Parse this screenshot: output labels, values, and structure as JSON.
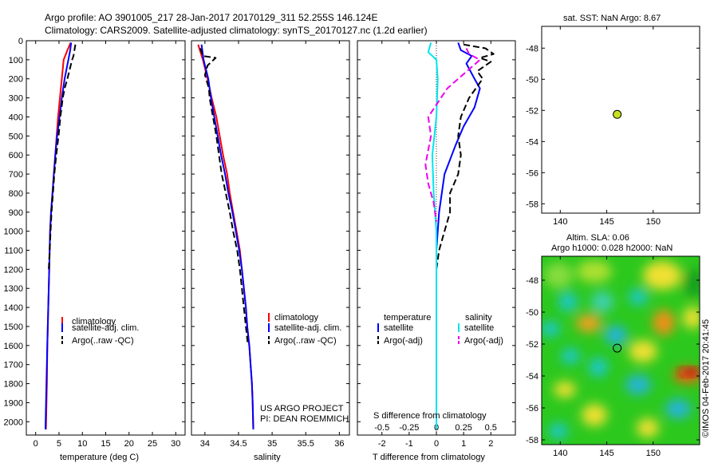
{
  "header": {
    "title_line1": "Argo profile: AO 3901005_217 28-Jan-2017 20170129_311 52.255S 146.124E",
    "title_line2": "Climatology: CARS2009. Satellite-adjusted climatology: synTS_20170127.nc (1.2d earlier)"
  },
  "legend_ts": {
    "clim": "climatology",
    "sat": "satellite-adj. clim.",
    "argo": "Argo(..raw -QC)"
  },
  "legend_diff": {
    "temp_header": "temperature",
    "sal_header": "salinity",
    "sat": "satellite",
    "argo": "Argo(-adj)"
  },
  "credits": {
    "line1": "US ARGO PROJECT",
    "line2": "PI: DEAN ROEMMICH"
  },
  "colors": {
    "clim": "#ff0000",
    "sat": "#0000ff",
    "argo": "#000000",
    "sal_sat": "#00e5ee",
    "sal_argo": "#ee00ee",
    "marker": "#c8e01e"
  },
  "sst_panel": {
    "title": "sat. SST: NaN Argo: 8.67"
  },
  "sla_panel": {
    "title1": "Altim. SLA: 0.06",
    "title2": "Argo h1000: 0.028 h2000: NaN"
  },
  "imos_label": "©IMOS 04-Feb-2017 20:41:45",
  "chart_data": [
    {
      "type": "line",
      "id": "temperature",
      "xlabel": "temperature (deg C)",
      "ylabel": "",
      "xlim": [
        -2,
        32
      ],
      "ylim": [
        2070,
        0
      ],
      "xticks": [
        0,
        5,
        10,
        15,
        20,
        25,
        30
      ],
      "yticks": [
        0,
        100,
        200,
        300,
        400,
        500,
        600,
        700,
        800,
        900,
        1000,
        1100,
        1200,
        1300,
        1400,
        1500,
        1600,
        1700,
        1800,
        1900,
        2000
      ],
      "series": [
        {
          "name": "climatology",
          "color": "#ff0000",
          "dash": "",
          "points": [
            [
              7.5,
              10
            ],
            [
              6.8,
              50
            ],
            [
              6.0,
              100
            ],
            [
              5.6,
              200
            ],
            [
              5.2,
              300
            ],
            [
              4.8,
              400
            ],
            [
              4.5,
              500
            ],
            [
              4.2,
              600
            ],
            [
              3.9,
              700
            ],
            [
              3.6,
              800
            ],
            [
              3.3,
              900
            ],
            [
              3.1,
              1000
            ],
            [
              2.9,
              1200
            ],
            [
              2.7,
              1400
            ],
            [
              2.5,
              1600
            ],
            [
              2.4,
              1800
            ],
            [
              2.2,
              2040
            ]
          ]
        },
        {
          "name": "satellite-adj. clim.",
          "color": "#0000ff",
          "dash": "",
          "points": [
            [
              7.6,
              10
            ],
            [
              7.4,
              50
            ],
            [
              7.0,
              100
            ],
            [
              6.2,
              200
            ],
            [
              5.6,
              300
            ],
            [
              5.1,
              400
            ],
            [
              4.6,
              500
            ],
            [
              4.2,
              600
            ],
            [
              3.9,
              700
            ],
            [
              3.6,
              800
            ],
            [
              3.3,
              900
            ],
            [
              3.1,
              1000
            ],
            [
              2.9,
              1200
            ],
            [
              2.7,
              1400
            ],
            [
              2.5,
              1600
            ],
            [
              2.3,
              1800
            ],
            [
              2.1,
              2040
            ]
          ]
        },
        {
          "name": "Argo(..raw -QC)",
          "color": "#000000",
          "dash": "8,4",
          "points": [
            [
              8.5,
              20
            ],
            [
              8.3,
              50
            ],
            [
              8.1,
              80
            ],
            [
              7.8,
              100
            ],
            [
              7.3,
              150
            ],
            [
              6.8,
              200
            ],
            [
              6.2,
              250
            ],
            [
              5.8,
              300
            ],
            [
              5.3,
              400
            ],
            [
              4.9,
              500
            ],
            [
              4.4,
              600
            ],
            [
              4.0,
              700
            ],
            [
              3.7,
              800
            ],
            [
              3.4,
              900
            ],
            [
              3.2,
              1000
            ],
            [
              3.0,
              1100
            ],
            [
              2.8,
              1200
            ]
          ]
        }
      ]
    },
    {
      "type": "line",
      "id": "salinity",
      "xlabel": "salinity",
      "ylabel": "",
      "xlim": [
        33.8,
        36.15
      ],
      "ylim": [
        2070,
        0
      ],
      "xticks": [
        34,
        34.5,
        35,
        35.5,
        36
      ],
      "series": [
        {
          "name": "climatology",
          "color": "#ff0000",
          "dash": "",
          "points": [
            [
              33.9,
              20
            ],
            [
              33.97,
              100
            ],
            [
              34.04,
              200
            ],
            [
              34.1,
              300
            ],
            [
              34.17,
              400
            ],
            [
              34.22,
              500
            ],
            [
              34.27,
              600
            ],
            [
              34.33,
              700
            ],
            [
              34.37,
              800
            ],
            [
              34.42,
              900
            ],
            [
              34.47,
              1000
            ],
            [
              34.52,
              1100
            ],
            [
              34.55,
              1200
            ],
            [
              34.58,
              1300
            ],
            [
              34.61,
              1400
            ],
            [
              34.63,
              1500
            ],
            [
              34.66,
              1600
            ],
            [
              34.68,
              1700
            ],
            [
              34.7,
              1800
            ],
            [
              34.71,
              1900
            ],
            [
              34.72,
              2040
            ]
          ]
        },
        {
          "name": "satellite-adj. clim.",
          "color": "#0000ff",
          "dash": "",
          "points": [
            [
              33.95,
              20
            ],
            [
              33.98,
              100
            ],
            [
              34.05,
              200
            ],
            [
              34.09,
              300
            ],
            [
              34.14,
              400
            ],
            [
              34.19,
              500
            ],
            [
              34.24,
              600
            ],
            [
              34.3,
              700
            ],
            [
              34.35,
              800
            ],
            [
              34.41,
              900
            ],
            [
              34.46,
              1000
            ],
            [
              34.51,
              1100
            ],
            [
              34.55,
              1200
            ],
            [
              34.58,
              1300
            ],
            [
              34.61,
              1400
            ],
            [
              34.63,
              1500
            ],
            [
              34.66,
              1600
            ],
            [
              34.68,
              1700
            ],
            [
              34.7,
              1800
            ],
            [
              34.71,
              1900
            ],
            [
              34.72,
              2040
            ]
          ]
        },
        {
          "name": "Argo(..raw -QC)",
          "color": "#000000",
          "dash": "8,4",
          "points": [
            [
              33.93,
              40
            ],
            [
              33.97,
              80
            ],
            [
              34.16,
              90
            ],
            [
              34.04,
              130
            ],
            [
              34.0,
              180
            ],
            [
              34.06,
              250
            ],
            [
              34.07,
              300
            ],
            [
              34.12,
              400
            ],
            [
              34.17,
              500
            ],
            [
              34.21,
              600
            ],
            [
              34.25,
              700
            ],
            [
              34.31,
              800
            ],
            [
              34.37,
              900
            ],
            [
              34.42,
              1000
            ],
            [
              34.48,
              1100
            ],
            [
              34.52,
              1200
            ],
            [
              34.55,
              1300
            ],
            [
              34.58,
              1400
            ],
            [
              34.61,
              1500
            ],
            [
              34.64,
              1600
            ]
          ]
        }
      ]
    },
    {
      "type": "line",
      "id": "difference",
      "xlabel": "T difference from climatology",
      "x2label": "S difference from climatology",
      "xlim": [
        -2.9,
        2.9
      ],
      "ylim": [
        2070,
        0
      ],
      "xticks": [
        -2,
        -1,
        0,
        1,
        2
      ],
      "x2ticks": [
        "-0.5",
        "-0.25",
        "0",
        "0.25",
        "0.5"
      ],
      "series": [
        {
          "name": "temperature satellite",
          "color": "#0000ff",
          "dash": "",
          "points": [
            [
              0.8,
              10
            ],
            [
              0.9,
              50
            ],
            [
              1.3,
              80
            ],
            [
              1.1,
              120
            ],
            [
              1.4,
              200
            ],
            [
              1.6,
              250
            ],
            [
              1.4,
              350
            ],
            [
              1.0,
              450
            ],
            [
              0.7,
              550
            ],
            [
              0.3,
              700
            ],
            [
              0.1,
              900
            ],
            [
              0.0,
              1100
            ],
            [
              0.0,
              1300
            ],
            [
              0.0,
              2040
            ]
          ]
        },
        {
          "name": "temperature Argo(-adj)",
          "color": "#000000",
          "dash": "8,4",
          "points": [
            [
              1.0,
              20
            ],
            [
              1.8,
              40
            ],
            [
              2.1,
              70
            ],
            [
              1.6,
              90
            ],
            [
              2.0,
              110
            ],
            [
              1.5,
              160
            ],
            [
              1.7,
              200
            ],
            [
              1.2,
              300
            ],
            [
              0.9,
              400
            ],
            [
              0.8,
              500
            ],
            [
              0.9,
              600
            ],
            [
              0.8,
              700
            ],
            [
              0.5,
              800
            ],
            [
              0.5,
              900
            ],
            [
              0.3,
              1000
            ],
            [
              0.1,
              1100
            ],
            [
              0.0,
              1200
            ]
          ]
        },
        {
          "name": "salinity satellite",
          "color": "#00e5ee",
          "dash": "",
          "points": [
            [
              -0.2,
              10
            ],
            [
              -0.3,
              60
            ],
            [
              0.0,
              100
            ],
            [
              0.05,
              200
            ],
            [
              0.0,
              400
            ],
            [
              -0.15,
              600
            ],
            [
              -0.1,
              800
            ],
            [
              0.0,
              1000
            ],
            [
              0.0,
              1200
            ],
            [
              0.0,
              2040
            ]
          ]
        },
        {
          "name": "salinity Argo(-adj)",
          "color": "#ee00ee",
          "dash": "8,4",
          "points": [
            [
              1.1,
              40
            ],
            [
              1.2,
              70
            ],
            [
              1.6,
              100
            ],
            [
              1.2,
              150
            ],
            [
              0.4,
              250
            ],
            [
              -0.3,
              400
            ],
            [
              -0.2,
              500
            ],
            [
              -0.4,
              650
            ],
            [
              -0.3,
              750
            ],
            [
              -0.1,
              850
            ],
            [
              0.0,
              950
            ]
          ]
        }
      ]
    },
    {
      "type": "scatter",
      "id": "sst-map",
      "xlim": [
        138,
        155
      ],
      "ylim": [
        -58.6,
        -46.6
      ],
      "xticks": [
        140,
        145,
        150
      ],
      "yticks": [
        -48,
        -50,
        -52,
        -54,
        -56,
        -58
      ],
      "points": [
        [
          146.124,
          -52.255
        ]
      ]
    },
    {
      "type": "heatmap",
      "id": "sla-map",
      "xlim": [
        138,
        155
      ],
      "ylim": [
        -58.3,
        -46.5
      ],
      "xticks": [
        140,
        145,
        150
      ],
      "yticks": [
        -48,
        -50,
        -52,
        -54,
        -56,
        -58
      ],
      "points": [
        [
          146.124,
          -52.255
        ]
      ]
    }
  ]
}
